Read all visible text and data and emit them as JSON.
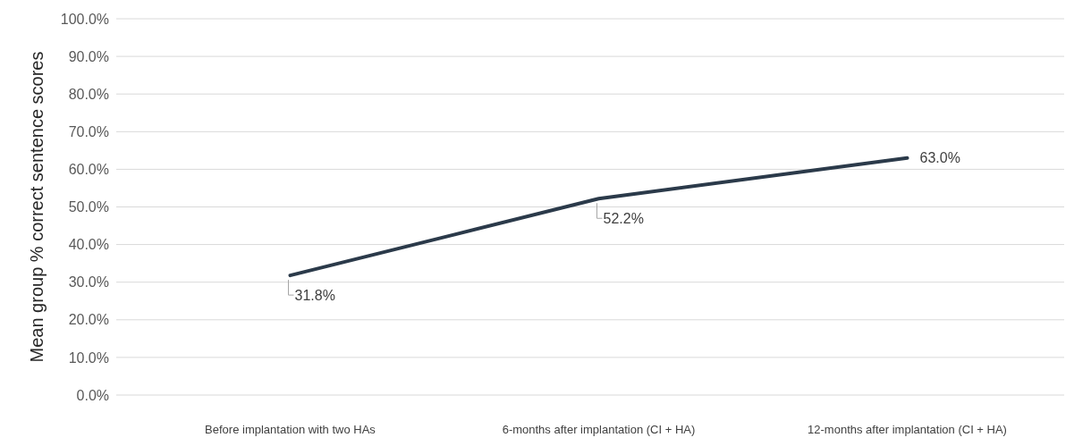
{
  "chart_data": {
    "type": "line",
    "ylabel": "Mean group % correct sentence scores",
    "categories": [
      "Before implantation with two HAs",
      "6-months after implantation (CI + HA)",
      "12-months after implantation (CI + HA)"
    ],
    "series": [
      {
        "color": "#2b3a4a",
        "values": [
          31.8,
          52.2,
          63.0
        ],
        "value_labels": [
          "31.8%",
          "52.2%",
          "63.0%"
        ]
      }
    ],
    "ylim": [
      0,
      100
    ],
    "yticks": [
      {
        "value": 0,
        "label": "0.0%"
      },
      {
        "value": 10,
        "label": "10.0%"
      },
      {
        "value": 20,
        "label": "20.0%"
      },
      {
        "value": 30,
        "label": "30.0%"
      },
      {
        "value": 40,
        "label": "40.0%"
      },
      {
        "value": 50,
        "label": "50.0%"
      },
      {
        "value": 60,
        "label": "60.0%"
      },
      {
        "value": 70,
        "label": "70.0%"
      },
      {
        "value": 80,
        "label": "80.0%"
      },
      {
        "value": 90,
        "label": "90.0%"
      },
      {
        "value": 100,
        "label": "100.0%"
      }
    ],
    "grid": "y",
    "marker": "none",
    "line_style": "solid"
  }
}
